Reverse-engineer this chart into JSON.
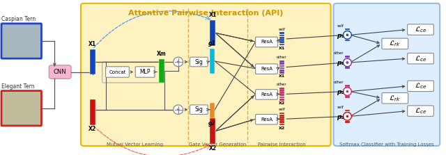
{
  "title": "Attentive Pairwise Interaction (API)",
  "section_labels": [
    "Mutual Vector Learning",
    "Gate Vector Generation",
    "Pairwise Interaction",
    "Softmax Classifier with Training Losses"
  ],
  "img1_label": "Caspian Tern",
  "img2_label": "Elegant Tern",
  "cnn_label": "CNN",
  "concat_label": "Concat",
  "mlp_label": "MLP",
  "sig_label": "Sig",
  "resa_label": "ResA",
  "bg_api_color": "#FEF3C0",
  "bg_api_border": "#E8B800",
  "bg_softmax_color": "#DDEEFF",
  "bg_softmax_border": "#99BBDD",
  "img1_border": "#2244CC",
  "img2_border": "#CC2222",
  "cnn_color": "#F5B8D0",
  "bar_x1_color": "#1144BB",
  "bar_x2_color": "#CC1111",
  "bar_xm_color": "#11AA11",
  "bar_g1_color": "#00BBDD",
  "bar_g2_color": "#EE8822",
  "bar_x1self_color": "#1144BB",
  "bar_x1other_color": "#7733AA",
  "bar_x2other_color": "#CC2266",
  "bar_x2self_color": "#CC1111",
  "p1self_color": "#1144BB",
  "p1other_color": "#7733AA",
  "p2other_color": "#CC2266",
  "p2self_color": "#CC1111",
  "arrow_color": "#444444",
  "dash_blue": "#4488FF",
  "dash_red": "#FF5555",
  "divider_color": "#DDAA44",
  "box_edge": "#888888"
}
